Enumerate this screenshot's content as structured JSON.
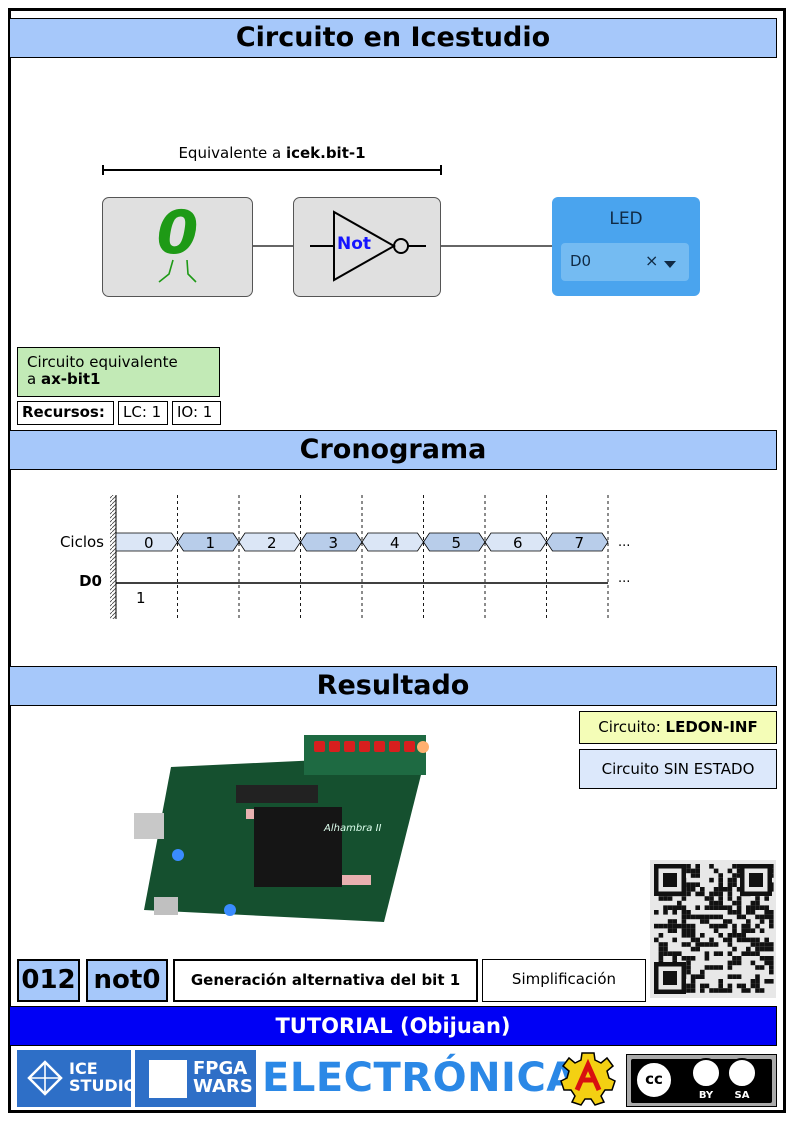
{
  "sections": {
    "circuit": "Circuito en Icestudio",
    "chrono": "Cronograma",
    "result": "Resultado"
  },
  "circuit": {
    "equivalent_prefix": "Equivalente a ",
    "equivalent_name": "icek.bit-1",
    "constant_value": "0",
    "not_label": "Not",
    "led_title": "LED",
    "led_pin": "D0",
    "clear_symbol": "×"
  },
  "note": {
    "line1": "Circuito equivalente",
    "line2_prefix": "a ",
    "line2_name": "ax-bit1"
  },
  "resources": {
    "label": "Recursos:",
    "lc": "LC: 1",
    "io": "IO: 1"
  },
  "chart_data": {
    "type": "timing",
    "rows": [
      {
        "name": "Ciclos",
        "values": [
          "0",
          "1",
          "2",
          "3",
          "4",
          "5",
          "6",
          "7"
        ]
      },
      {
        "name": "D0",
        "values": [
          "1"
        ]
      }
    ],
    "ellipsis": "..."
  },
  "result": {
    "circuit_label": "Circuito: ",
    "circuit_name": "LEDON-INF",
    "state": "Circuito SIN ESTADO",
    "board_name": "Alhambra II"
  },
  "footer": {
    "number": "012",
    "name": "not0",
    "title": "Generación alternativa del bit 1",
    "category": "Simplificación",
    "tutorial": "TUTORIAL (Obijuan)",
    "icestudio_line1": "ICE",
    "icestudio_line2": "STUDIO",
    "fpga_line1": "FPGA",
    "fpga_line2": "WARS",
    "electronica": "ELECTRÓNICA",
    "cc_by": "BY",
    "cc_sa": "SA"
  },
  "colors": {
    "header_blue": "#a6c8fa",
    "tutorial_blue": "#0000f5",
    "note_green": "#c2eab6",
    "note_yellow": "#f4fdb7",
    "led_blue": "#4aa4ee",
    "constant_green": "#1e9a16"
  }
}
